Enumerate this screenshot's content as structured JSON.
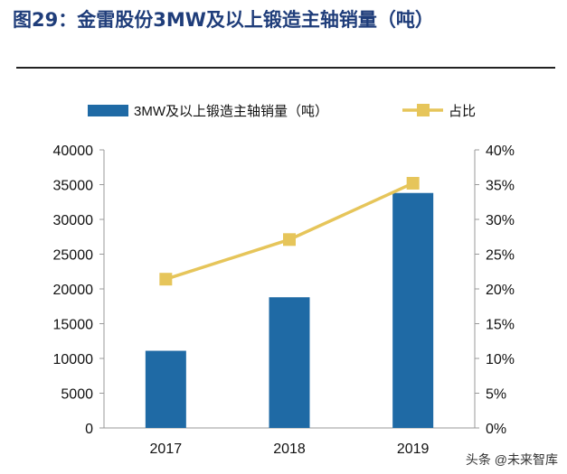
{
  "title": "图29：金雷股份3MW及以上锻造主轴销量（吨）",
  "watermark": "头条 @未来智库",
  "chart_data": {
    "type": "bar+line",
    "categories": [
      "2017",
      "2018",
      "2019"
    ],
    "series": [
      {
        "name": "3MW及以上锻造主轴销量（吨）",
        "type": "bar",
        "axis": "left",
        "color": "#1f6aa5",
        "values": [
          11100,
          18800,
          33800
        ]
      },
      {
        "name": "占比",
        "type": "line",
        "axis": "right",
        "color": "#e6c55a",
        "values": [
          21.4,
          27.1,
          35.2
        ]
      }
    ],
    "y_left": {
      "range": [
        0,
        40000
      ],
      "ticks": [
        "0",
        "5000",
        "10000",
        "15000",
        "20000",
        "25000",
        "30000",
        "35000",
        "40000"
      ]
    },
    "y_right": {
      "range": [
        0,
        40
      ],
      "unit": "%",
      "ticks": [
        "0%",
        "5%",
        "10%",
        "15%",
        "20%",
        "25%",
        "30%",
        "35%",
        "40%"
      ]
    },
    "grid": false,
    "legend": "top"
  }
}
